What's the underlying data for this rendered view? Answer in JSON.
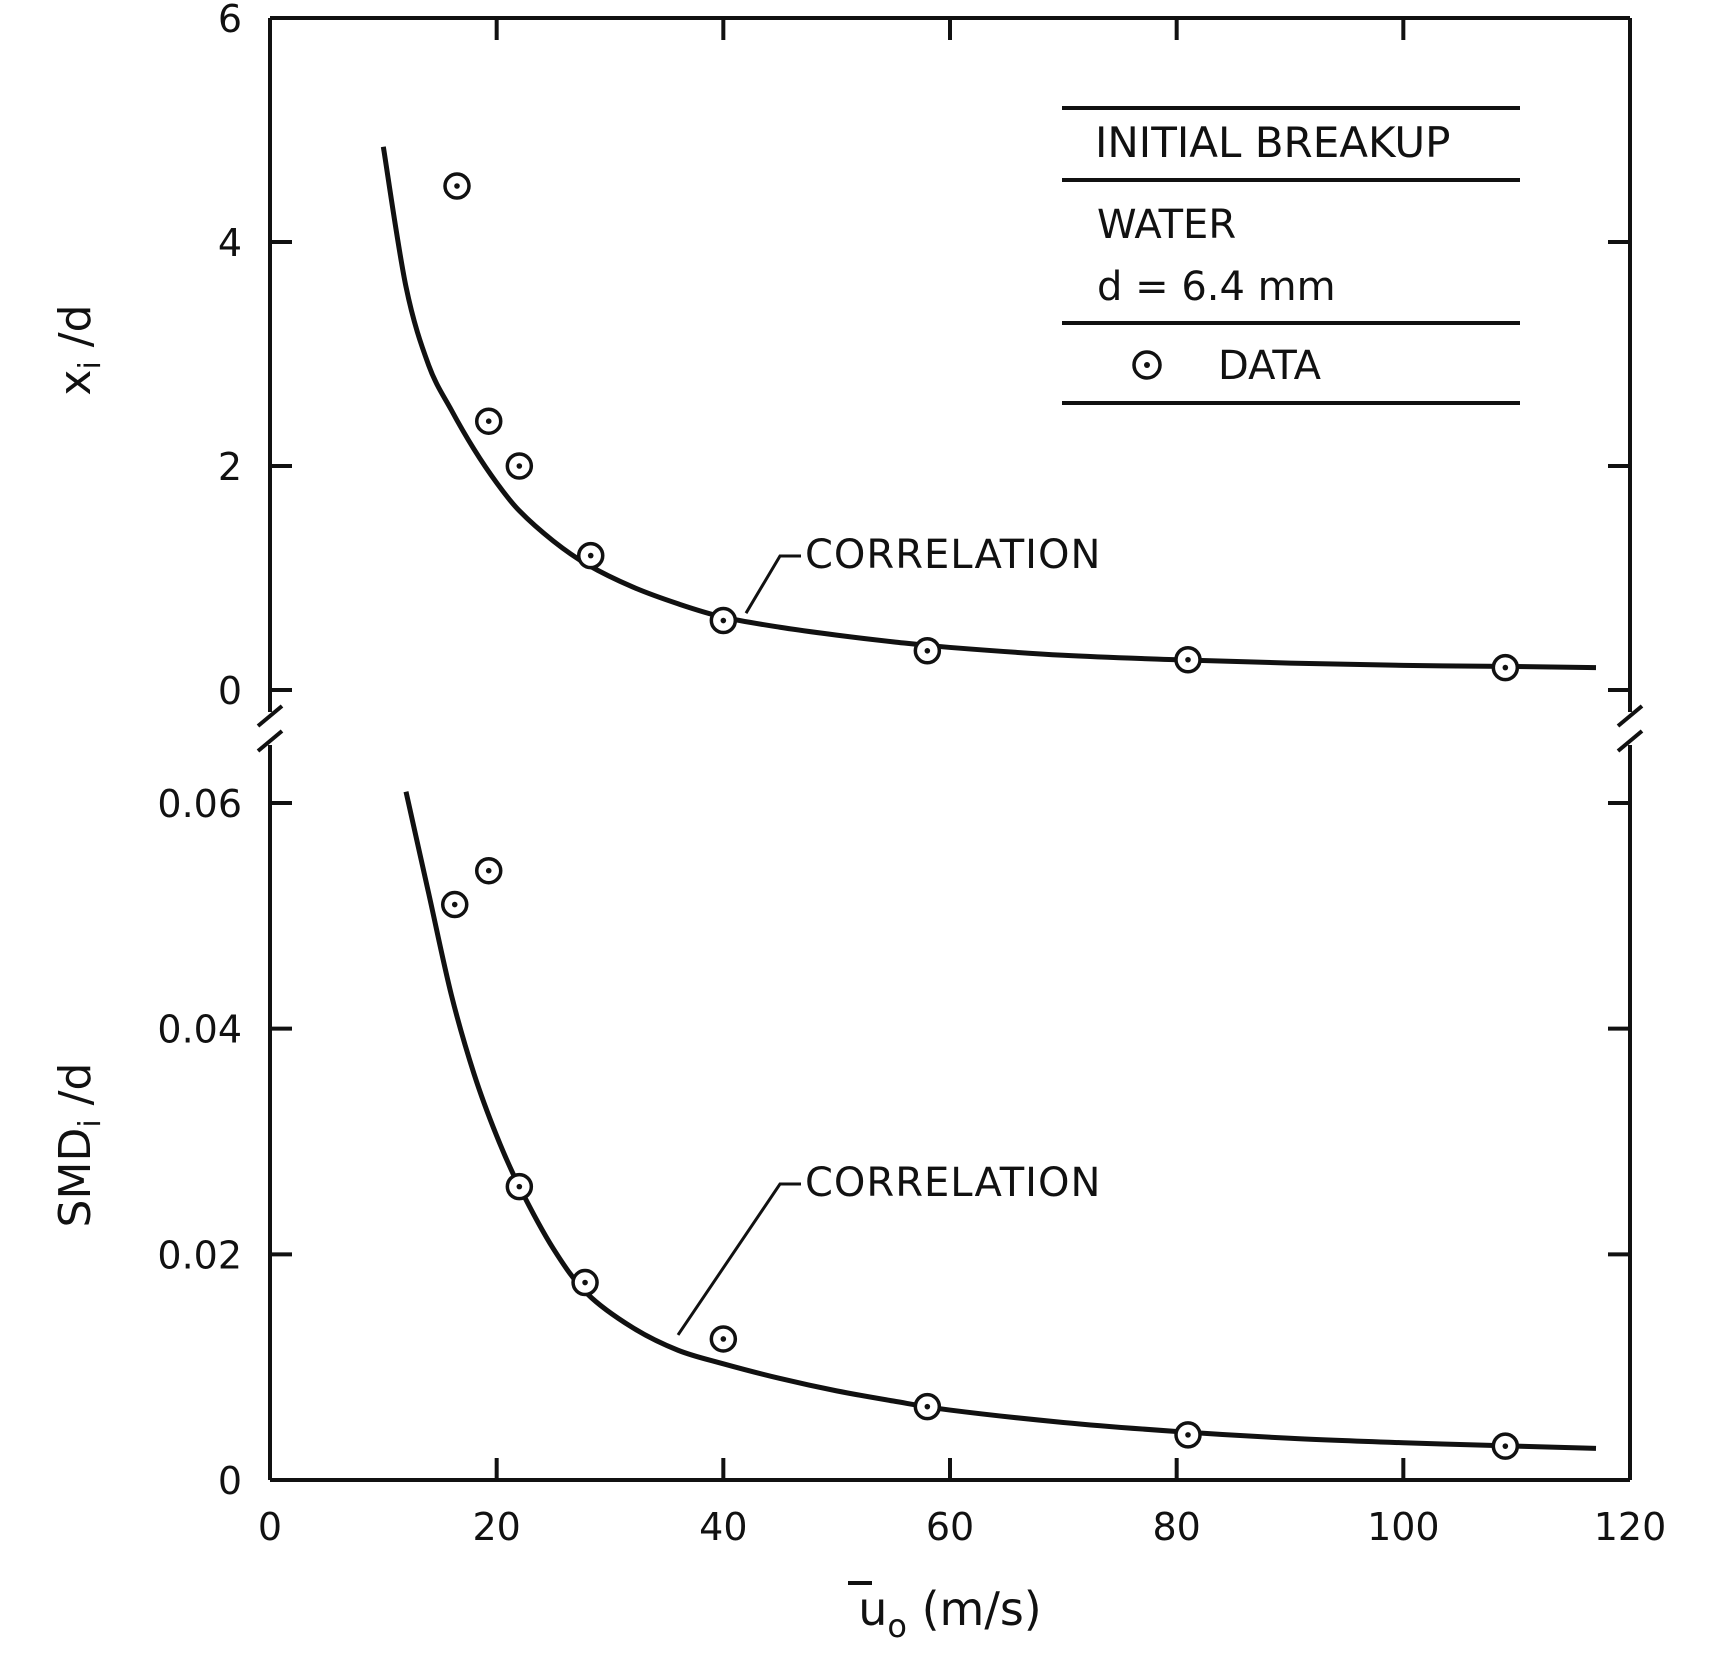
{
  "chart_data": [
    {
      "type": "scatter",
      "title": "",
      "xlabel": "",
      "ylabel_main": "x",
      "ylabel_sub": "i",
      "ylabel_tail": " /d",
      "xlim": [
        0,
        120
      ],
      "ylim": [
        0,
        6
      ],
      "yticks": [
        0,
        2,
        4,
        6
      ],
      "ytick_labels": [
        "0",
        "2",
        "4",
        "6"
      ],
      "legend": {
        "position": "top-right",
        "lines": [
          "INITIAL BREAKUP",
          "WATER",
          "d = 6.4 mm"
        ],
        "marker_label": "DATA"
      },
      "series": [
        {
          "name": "DATA",
          "x": [
            16.5,
            19.3,
            22.0,
            28.3,
            40.0,
            58.0,
            81.0,
            109.0
          ],
          "y": [
            4.5,
            2.4,
            2.0,
            1.2,
            0.62,
            0.35,
            0.27,
            0.2
          ]
        },
        {
          "name": "CORRELATION",
          "x": [
            10,
            12,
            14,
            16,
            18,
            20,
            22,
            25,
            28,
            32,
            36,
            40,
            45,
            50,
            55,
            60,
            70,
            80,
            90,
            100,
            110,
            117
          ],
          "y": [
            4.85,
            3.6,
            2.9,
            2.5,
            2.15,
            1.85,
            1.6,
            1.33,
            1.12,
            0.92,
            0.77,
            0.65,
            0.56,
            0.49,
            0.43,
            0.38,
            0.31,
            0.27,
            0.24,
            0.22,
            0.21,
            0.2
          ]
        }
      ],
      "annotations": [
        {
          "text": "CORRELATION",
          "x": 42,
          "y": 0.65
        }
      ]
    },
    {
      "type": "scatter",
      "title": "",
      "xlabel_main": "u",
      "xlabel_sub": "o",
      "xlabel_tail": " (m/s)",
      "ylabel_main": "SMD",
      "ylabel_sub": "i",
      "ylabel_tail": " /d",
      "xlim": [
        0,
        120
      ],
      "ylim": [
        0,
        0.06
      ],
      "xticks": [
        0,
        20,
        40,
        60,
        80,
        100,
        120
      ],
      "xtick_labels": [
        "0",
        "20",
        "40",
        "60",
        "80",
        "100",
        "120"
      ],
      "yticks": [
        0,
        0.02,
        0.04,
        0.06
      ],
      "ytick_labels": [
        "0",
        "0.02",
        "0.04",
        "0.06"
      ],
      "series": [
        {
          "name": "DATA",
          "x": [
            16.3,
            19.3,
            22.0,
            27.8,
            40.0,
            58.0,
            81.0,
            109.0
          ],
          "y": [
            0.051,
            0.054,
            0.026,
            0.0175,
            0.0125,
            0.0065,
            0.004,
            0.003
          ]
        },
        {
          "name": "CORRELATION",
          "x": [
            12,
            14,
            16,
            18,
            20,
            22,
            25,
            28,
            32,
            36,
            40,
            45,
            50,
            55,
            60,
            70,
            80,
            90,
            100,
            110,
            117
          ],
          "y": [
            0.061,
            0.052,
            0.043,
            0.036,
            0.0305,
            0.026,
            0.0205,
            0.0165,
            0.0135,
            0.0115,
            0.0103,
            0.009,
            0.0079,
            0.007,
            0.0062,
            0.0051,
            0.0043,
            0.0037,
            0.0033,
            0.003,
            0.0028
          ]
        }
      ],
      "annotations": [
        {
          "text": "CORRELATION",
          "x": 36,
          "y": 0.0125
        }
      ]
    }
  ]
}
